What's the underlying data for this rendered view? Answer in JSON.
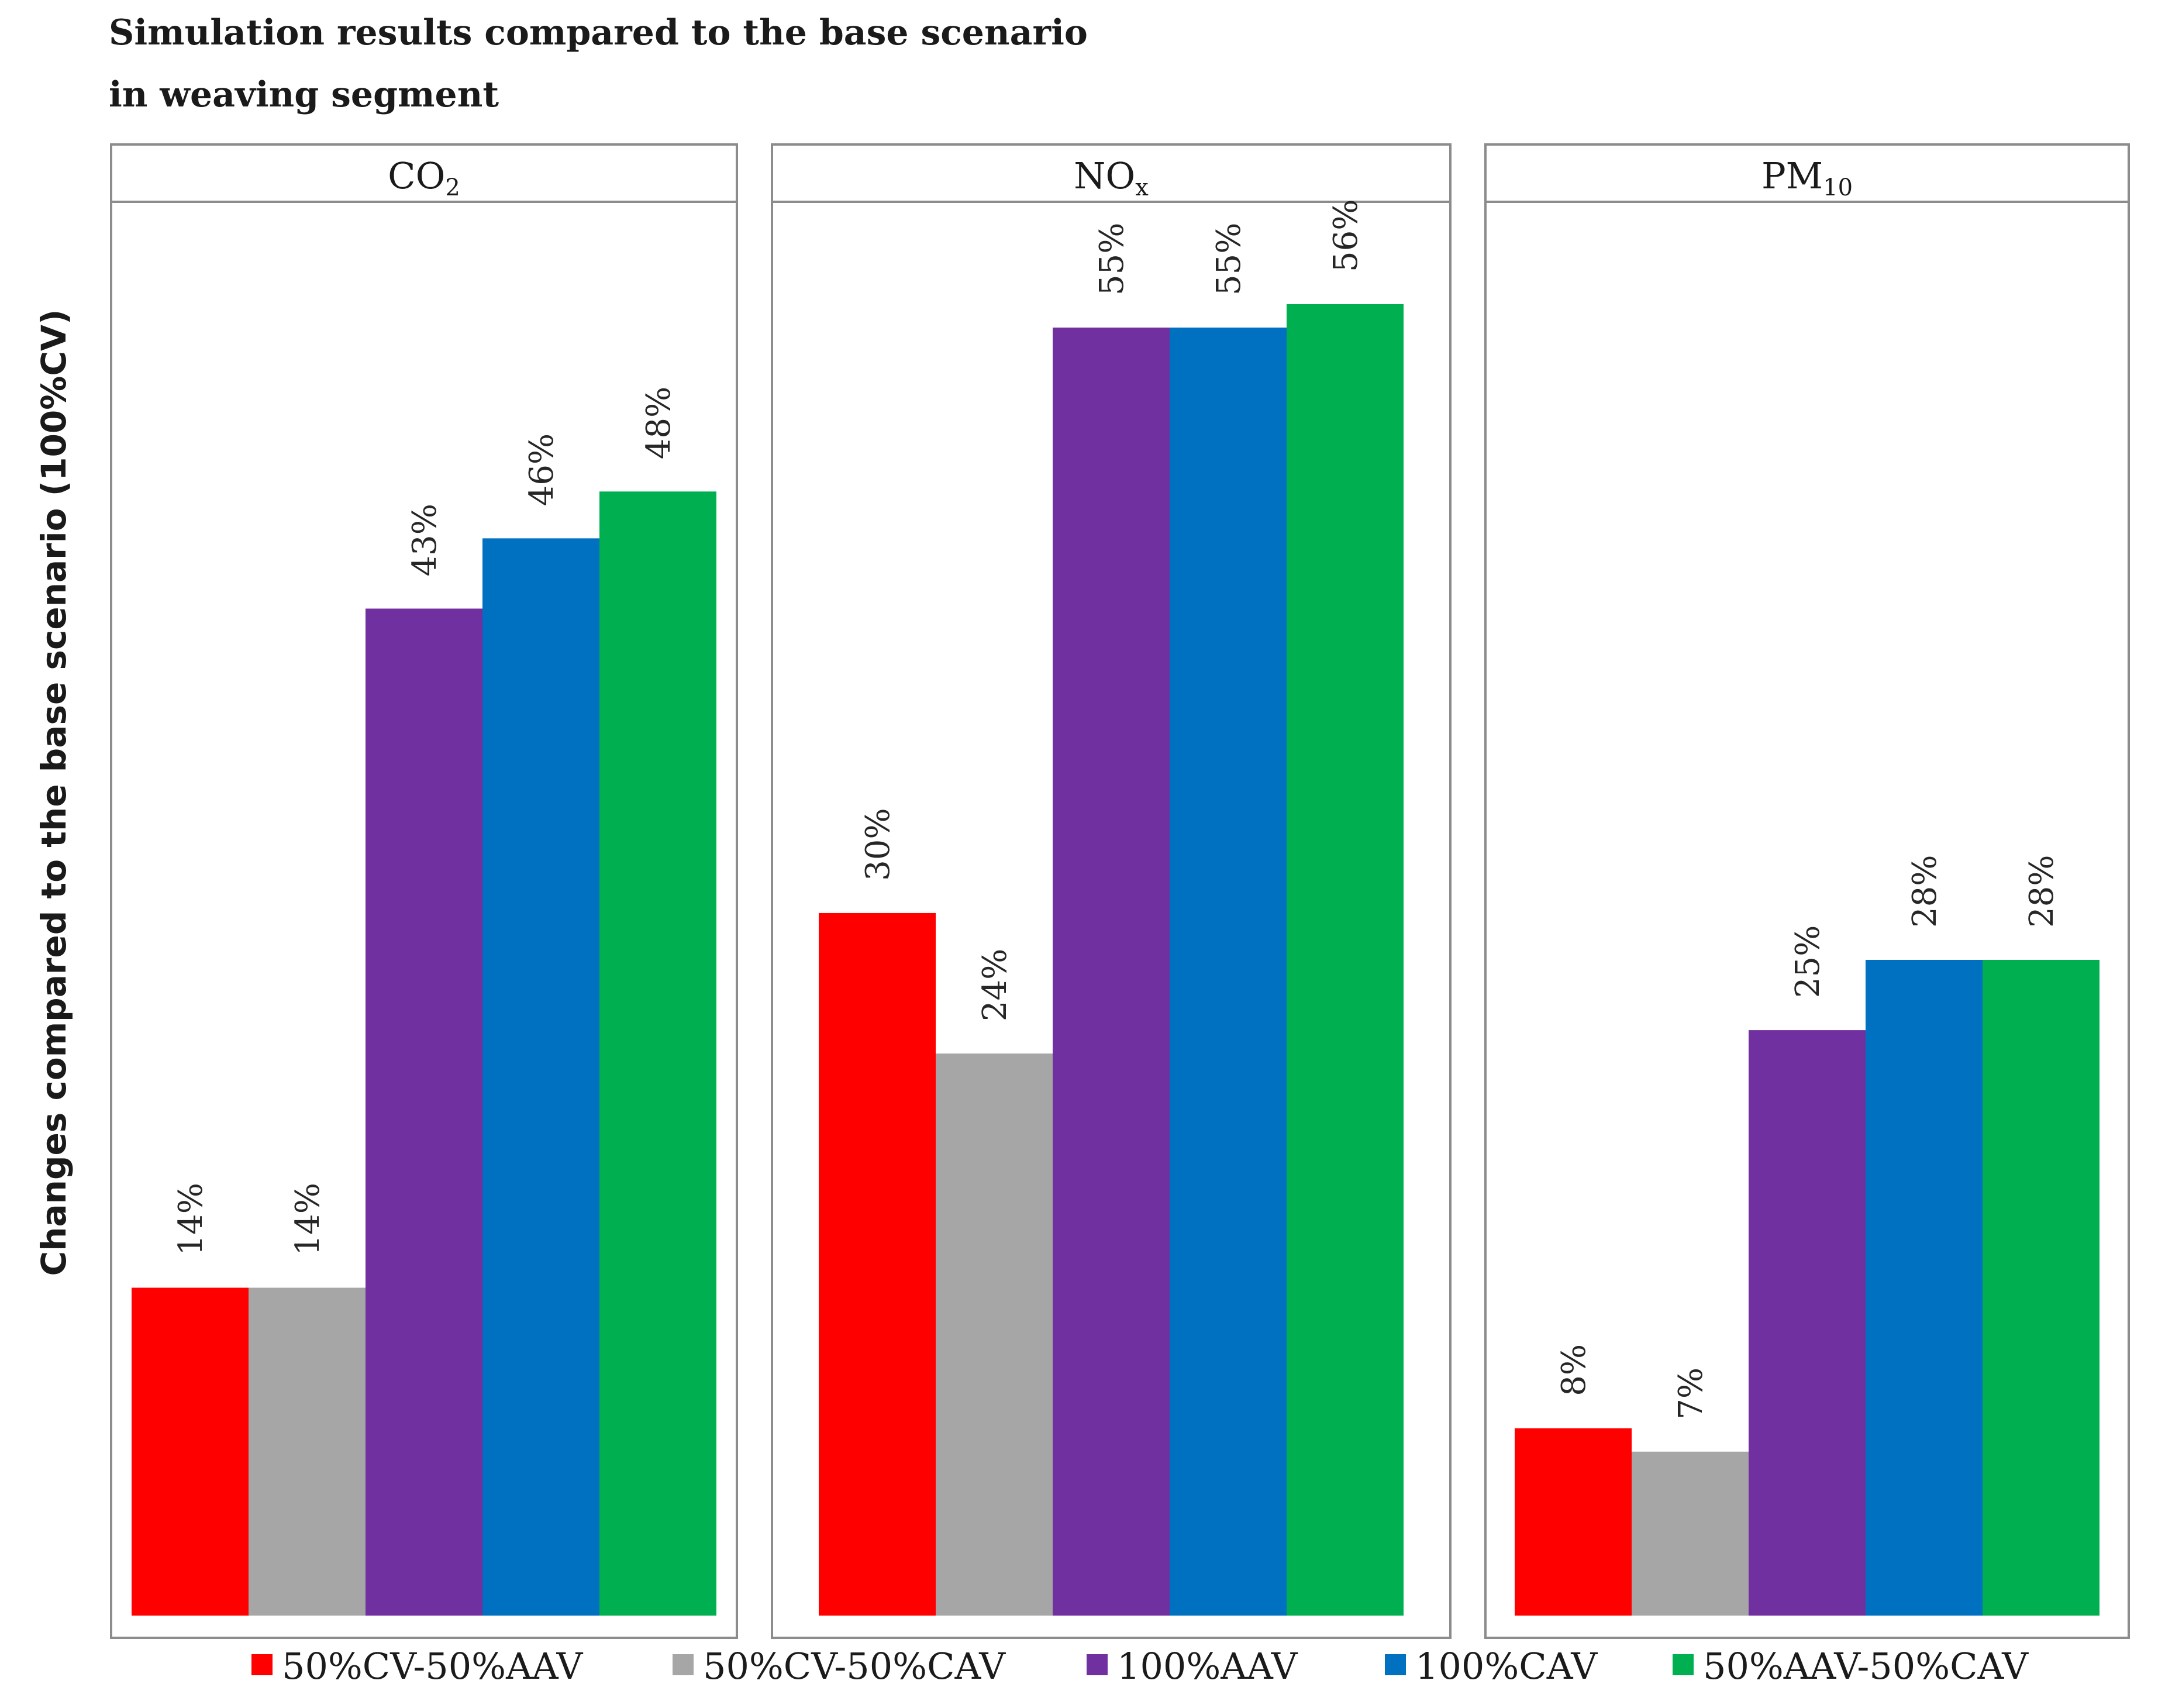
{
  "chart_data": {
    "type": "bar",
    "title_lines": [
      "Simulation results compared to the base scenario",
      "in weaving segment"
    ],
    "ylabel": "Changes compared to the base scenario (100%CV)",
    "xlabel": "",
    "ylim": [
      0,
      60
    ],
    "grid": false,
    "legend_position": "bottom",
    "categories": [
      "50%CV-50%AAV",
      "50%CV-50%CAV",
      "100%AAV",
      "100%CAV",
      "50%AAV-50%CAV"
    ],
    "colors": [
      "#ff0000",
      "#a6a6a6",
      "#7030a0",
      "#0070c0",
      "#00b050"
    ],
    "panels": [
      {
        "title": "CO",
        "title_sub": "2",
        "values": [
          14,
          14,
          43,
          46,
          48
        ],
        "labels": [
          "14%",
          "14%",
          "43%",
          "46%",
          "48%"
        ]
      },
      {
        "title": "NO",
        "title_sub": "x",
        "values": [
          30,
          24,
          55,
          55,
          56
        ],
        "labels": [
          "30%",
          "24%",
          "55%",
          "55%",
          "56%"
        ]
      },
      {
        "title": "PM",
        "title_sub": "10",
        "values": [
          8,
          7,
          25,
          28,
          28
        ],
        "labels": [
          "8%",
          "7%",
          "25%",
          "28%",
          "28%"
        ]
      }
    ]
  }
}
